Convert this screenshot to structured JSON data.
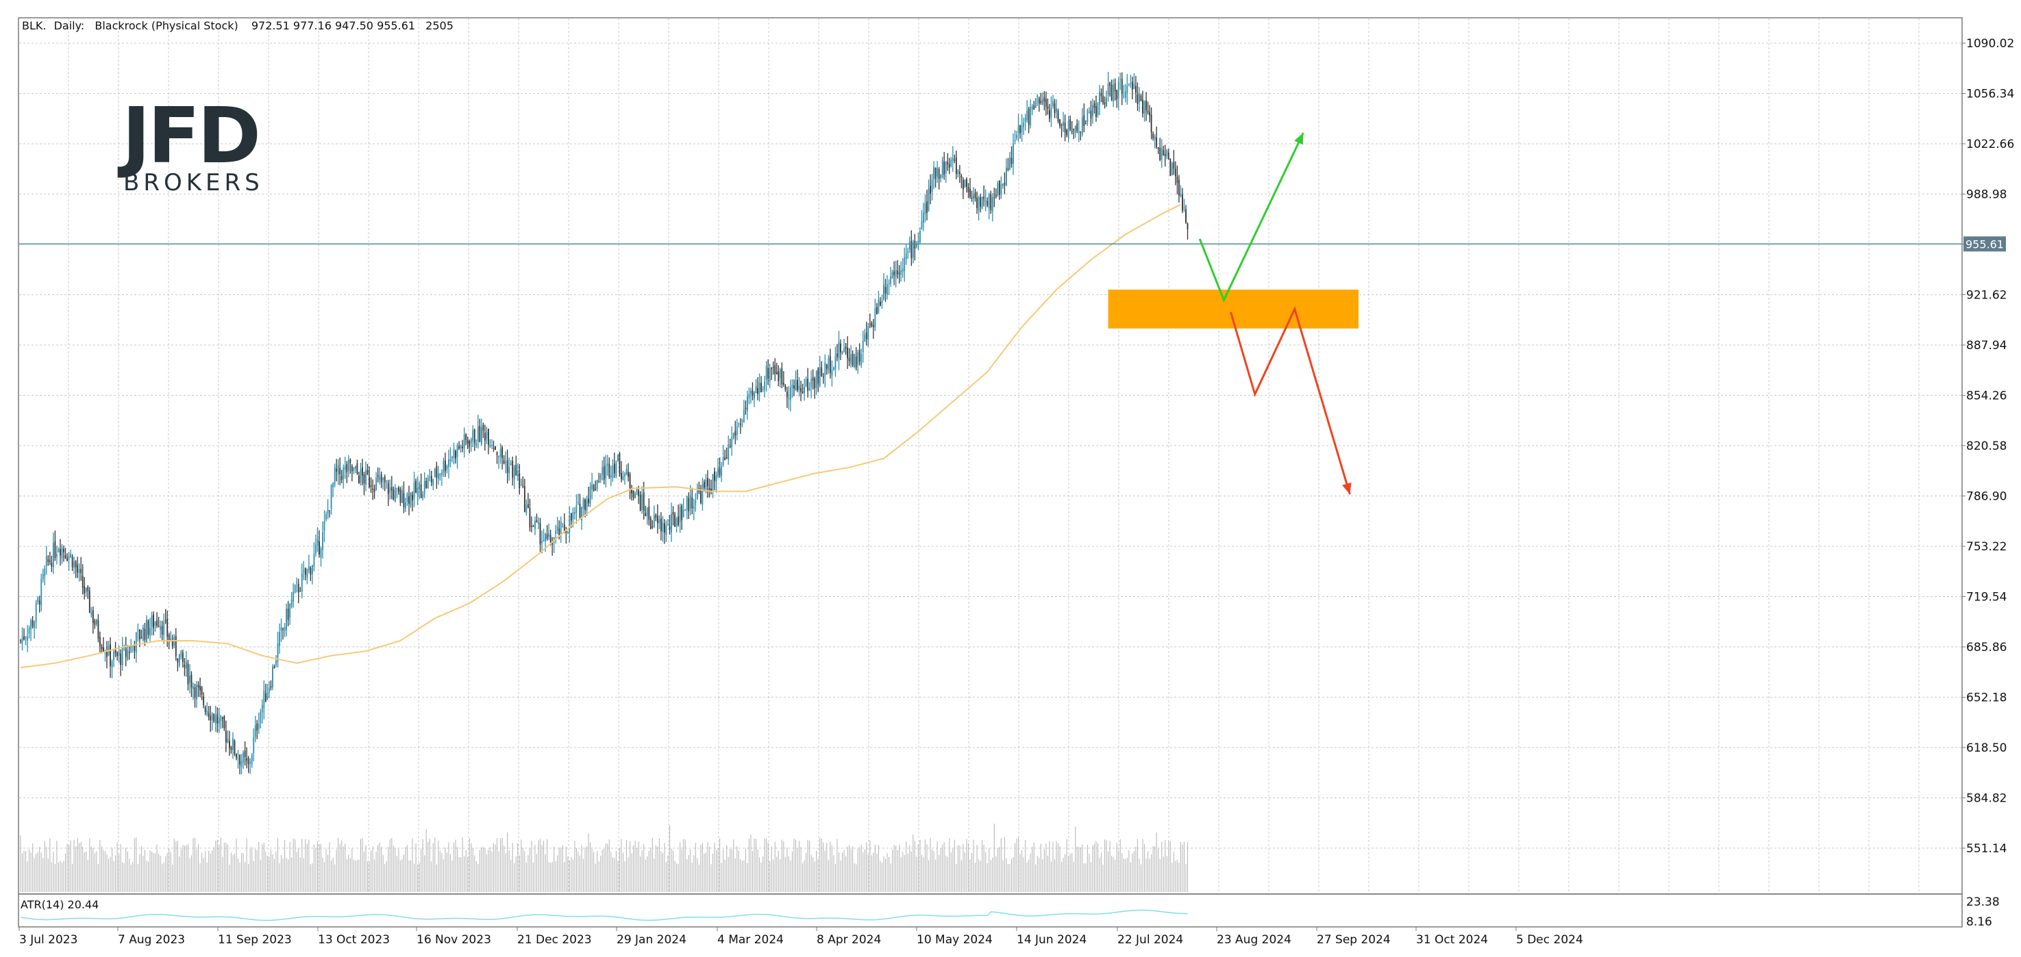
{
  "header": {
    "symbol": "BLK.",
    "timeframe": "Daily:",
    "instrument": "Blackrock (Physical Stock)",
    "ohlc": "972.51 977.16 947.50 955.61",
    "count": "2505"
  },
  "logo": {
    "name": "JFD",
    "sub": "BROKERS"
  },
  "indicator": {
    "label": "ATR(14) 20.44"
  },
  "chart_data": {
    "type": "candlestick",
    "title": "",
    "xlabel": "",
    "ylabel": "",
    "ylim": [
      570,
      1100
    ],
    "y_ticks": [
      "1090.02",
      "1056.34",
      "1022.66",
      "988.98",
      "955.61",
      "921.62",
      "887.94",
      "854.26",
      "820.58",
      "786.90",
      "753.22",
      "719.54",
      "685.86",
      "652.18",
      "618.50",
      "584.82",
      "551.14"
    ],
    "atr_ticks": [
      "23.38",
      "8.16"
    ],
    "x_ticks": [
      "3 Jul 2023",
      "7 Aug 2023",
      "11 Sep 2023",
      "13 Oct 2023",
      "16 Nov 2023",
      "21 Dec 2023",
      "29 Jan 2024",
      "4 Mar 2024",
      "8 Apr 2024",
      "10 May 2024",
      "14 Jun 2024",
      "22 Jul 2024",
      "23 Aug 2024",
      "27 Sep 2024",
      "31 Oct 2024",
      "5 Dec 2024"
    ],
    "last_price": 955.61,
    "last_price_label": "955.61",
    "price_path": [
      [
        0,
        690
      ],
      [
        8,
        705
      ],
      [
        15,
        740
      ],
      [
        22,
        755
      ],
      [
        30,
        745
      ],
      [
        38,
        720
      ],
      [
        45,
        695
      ],
      [
        52,
        678
      ],
      [
        60,
        680
      ],
      [
        70,
        695
      ],
      [
        80,
        705
      ],
      [
        88,
        688
      ],
      [
        95,
        672
      ],
      [
        105,
        650
      ],
      [
        115,
        635
      ],
      [
        125,
        615
      ],
      [
        132,
        605
      ],
      [
        138,
        640
      ],
      [
        145,
        665
      ],
      [
        150,
        690
      ],
      [
        158,
        720
      ],
      [
        168,
        740
      ],
      [
        175,
        760
      ],
      [
        182,
        800
      ],
      [
        190,
        805
      ],
      [
        200,
        798
      ],
      [
        210,
        795
      ],
      [
        220,
        785
      ],
      [
        230,
        790
      ],
      [
        240,
        800
      ],
      [
        250,
        815
      ],
      [
        260,
        825
      ],
      [
        270,
        830
      ],
      [
        280,
        810
      ],
      [
        288,
        800
      ],
      [
        295,
        770
      ],
      [
        305,
        755
      ],
      [
        315,
        765
      ],
      [
        325,
        780
      ],
      [
        335,
        800
      ],
      [
        345,
        810
      ],
      [
        355,
        792
      ],
      [
        365,
        770
      ],
      [
        375,
        765
      ],
      [
        385,
        780
      ],
      [
        395,
        790
      ],
      [
        405,
        800
      ],
      [
        412,
        825
      ],
      [
        420,
        845
      ],
      [
        428,
        860
      ],
      [
        435,
        875
      ],
      [
        445,
        858
      ],
      [
        455,
        860
      ],
      [
        465,
        870
      ],
      [
        475,
        885
      ],
      [
        485,
        878
      ],
      [
        492,
        900
      ],
      [
        502,
        932
      ],
      [
        512,
        945
      ],
      [
        520,
        960
      ],
      [
        530,
        1005
      ],
      [
        540,
        1010
      ],
      [
        550,
        990
      ],
      [
        560,
        980
      ],
      [
        570,
        1000
      ],
      [
        578,
        1030
      ],
      [
        588,
        1050
      ],
      [
        598,
        1045
      ],
      [
        608,
        1030
      ],
      [
        618,
        1040
      ],
      [
        628,
        1055
      ],
      [
        638,
        1060
      ],
      [
        648,
        1055
      ],
      [
        655,
        1035
      ],
      [
        660,
        1018
      ],
      [
        665,
        1010
      ],
      [
        672,
        988
      ],
      [
        676,
        960
      ]
    ],
    "ma_path": [
      [
        0,
        672
      ],
      [
        20,
        675
      ],
      [
        40,
        680
      ],
      [
        60,
        686
      ],
      [
        80,
        690
      ],
      [
        100,
        690
      ],
      [
        120,
        688
      ],
      [
        140,
        680
      ],
      [
        160,
        675
      ],
      [
        180,
        680
      ],
      [
        200,
        683
      ],
      [
        220,
        690
      ],
      [
        240,
        705
      ],
      [
        260,
        715
      ],
      [
        280,
        730
      ],
      [
        300,
        748
      ],
      [
        320,
        768
      ],
      [
        340,
        785
      ],
      [
        355,
        792
      ],
      [
        380,
        793
      ],
      [
        400,
        790
      ],
      [
        420,
        790
      ],
      [
        440,
        796
      ],
      [
        460,
        802
      ],
      [
        480,
        806
      ],
      [
        500,
        812
      ],
      [
        520,
        830
      ],
      [
        540,
        850
      ],
      [
        560,
        870
      ],
      [
        580,
        900
      ],
      [
        600,
        925
      ],
      [
        620,
        945
      ],
      [
        640,
        962
      ],
      [
        660,
        975
      ],
      [
        672,
        982
      ]
    ],
    "volume_max": 100,
    "scenarios": {
      "bullish": [
        [
          683,
          959
        ],
        [
          697,
          918
        ],
        [
          743,
          1030
        ]
      ],
      "bearish": [
        [
          701,
          910
        ],
        [
          715,
          855
        ],
        [
          738,
          912
        ],
        [
          770,
          788
        ]
      ],
      "zone": {
        "from_index": 630,
        "to_index": 775,
        "low": 899,
        "high": 925
      }
    },
    "grid": true
  }
}
